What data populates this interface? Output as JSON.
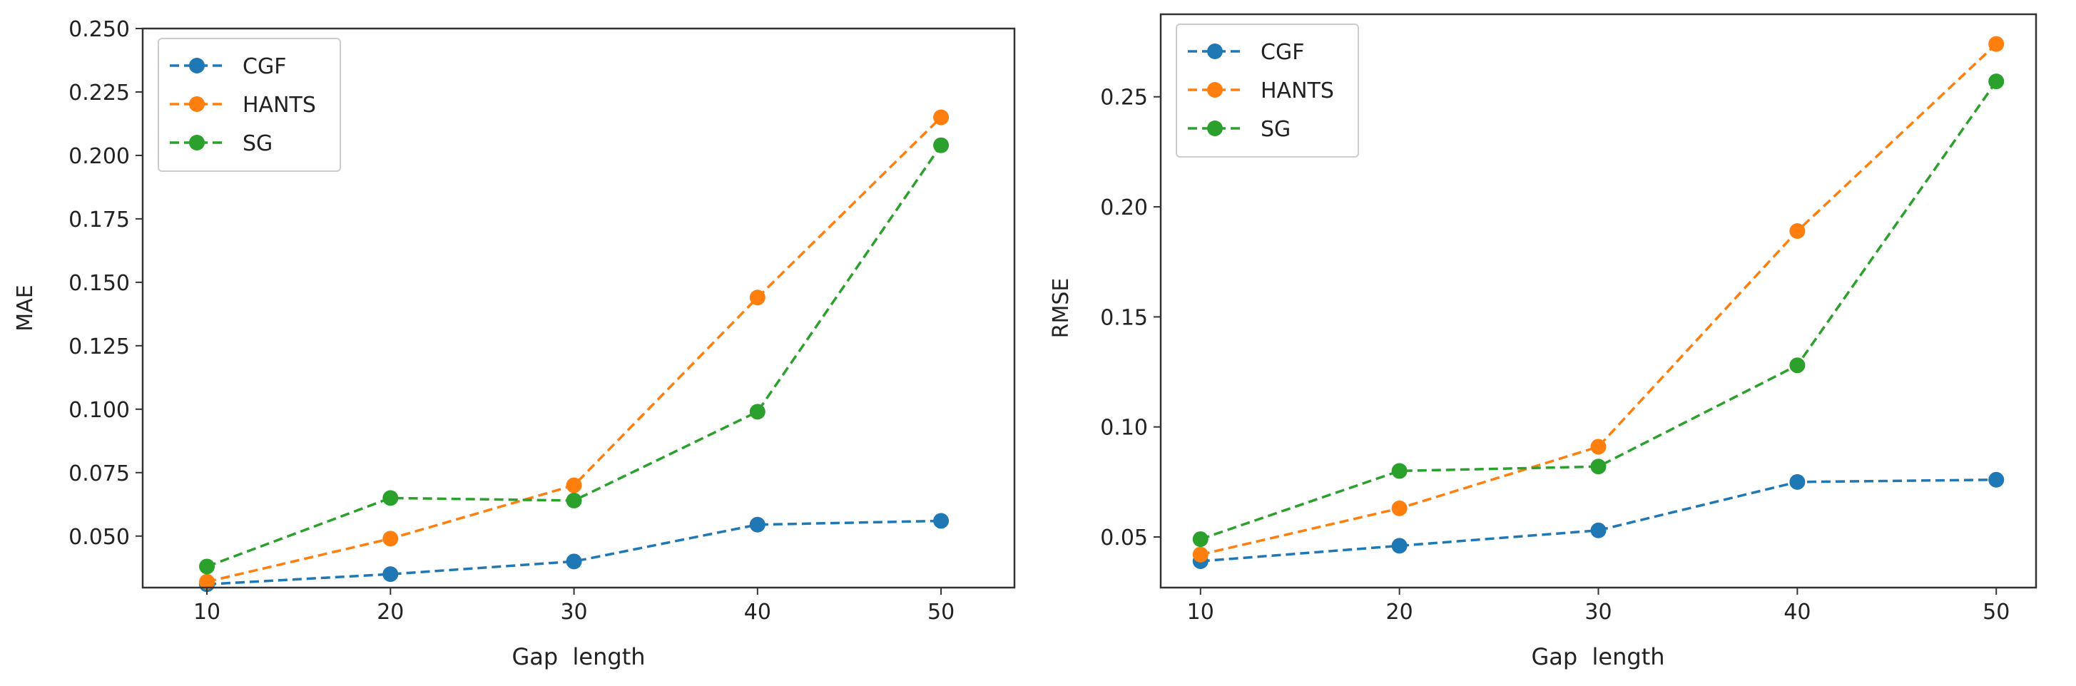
{
  "chart_data": [
    {
      "type": "line",
      "xlabel": "Gap  length",
      "ylabel": "MAE",
      "x": [
        10,
        20,
        30,
        40,
        50
      ],
      "xlim": [
        6.5,
        54
      ],
      "ylim": [
        0.0297,
        0.25
      ],
      "xticks": [
        "10",
        "20",
        "30",
        "40",
        "50"
      ],
      "yticks": [
        "0.050",
        "0.075",
        "0.100",
        "0.125",
        "0.150",
        "0.175",
        "0.200",
        "0.225",
        "0.250"
      ],
      "legend_position": "top-left",
      "series": [
        {
          "name": "CGF",
          "color": "#1f77b4",
          "values": [
            0.031,
            0.035,
            0.04,
            0.0545,
            0.056
          ]
        },
        {
          "name": "HANTS",
          "color": "#ff7f0e",
          "values": [
            0.032,
            0.049,
            0.07,
            0.144,
            0.215
          ]
        },
        {
          "name": "SG",
          "color": "#2ca02c",
          "values": [
            0.038,
            0.065,
            0.064,
            0.099,
            0.204
          ]
        }
      ]
    },
    {
      "type": "line",
      "xlabel": "Gap  length",
      "ylabel": "RMSE",
      "x": [
        10,
        20,
        30,
        40,
        50
      ],
      "xlim": [
        8,
        52
      ],
      "ylim": [
        0.027,
        0.2875
      ],
      "xticks": [
        "10",
        "20",
        "30",
        "40",
        "50"
      ],
      "yticks": [
        "0.05",
        "0.10",
        "0.15",
        "0.20",
        "0.25"
      ],
      "legend_position": "top-left",
      "series": [
        {
          "name": "CGF",
          "color": "#1f77b4",
          "values": [
            0.039,
            0.046,
            0.053,
            0.075,
            0.076
          ]
        },
        {
          "name": "HANTS",
          "color": "#ff7f0e",
          "values": [
            0.042,
            0.063,
            0.091,
            0.189,
            0.274
          ]
        },
        {
          "name": "SG",
          "color": "#2ca02c",
          "values": [
            0.049,
            0.08,
            0.082,
            0.128,
            0.257
          ]
        }
      ]
    }
  ]
}
